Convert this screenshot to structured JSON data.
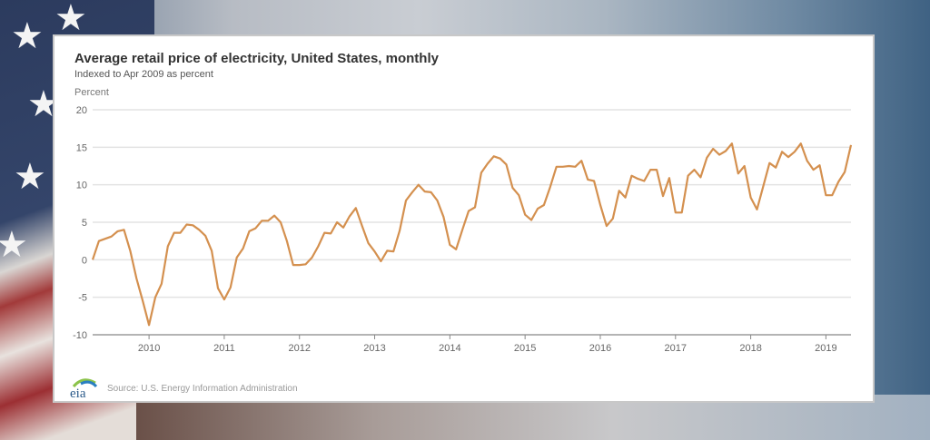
{
  "chart_data": {
    "type": "line",
    "title": "Average retail price of electricity, United States, monthly",
    "subtitle": "Indexed to Apr 2009 as percent",
    "ylabel": "Percent",
    "xlabel": "",
    "ylim": [
      -10,
      20
    ],
    "yticks": [
      -10,
      -5,
      0,
      5,
      10,
      15,
      20
    ],
    "xticks": [
      "2010",
      "2011",
      "2012",
      "2013",
      "2014",
      "2015",
      "2016",
      "2017",
      "2018",
      "2019"
    ],
    "grid": true,
    "legend": "none",
    "line_color": "#d4904f",
    "x": [
      "2009-04",
      "2009-05",
      "2009-06",
      "2009-07",
      "2009-08",
      "2009-09",
      "2009-10",
      "2009-11",
      "2009-12",
      "2010-01",
      "2010-02",
      "2010-03",
      "2010-04",
      "2010-05",
      "2010-06",
      "2010-07",
      "2010-08",
      "2010-09",
      "2010-10",
      "2010-11",
      "2010-12",
      "2011-01",
      "2011-02",
      "2011-03",
      "2011-04",
      "2011-05",
      "2011-06",
      "2011-07",
      "2011-08",
      "2011-09",
      "2011-10",
      "2011-11",
      "2011-12",
      "2012-01",
      "2012-02",
      "2012-03",
      "2012-04",
      "2012-05",
      "2012-06",
      "2012-07",
      "2012-08",
      "2012-09",
      "2012-10",
      "2012-11",
      "2012-12",
      "2013-01",
      "2013-02",
      "2013-03",
      "2013-04",
      "2013-05",
      "2013-06",
      "2013-07",
      "2013-08",
      "2013-09",
      "2013-10",
      "2013-11",
      "2013-12",
      "2014-01",
      "2014-02",
      "2014-03",
      "2014-04",
      "2014-05",
      "2014-06",
      "2014-07",
      "2014-08",
      "2014-09",
      "2014-10",
      "2014-11",
      "2014-12",
      "2015-01",
      "2015-02",
      "2015-03",
      "2015-04",
      "2015-05",
      "2015-06",
      "2015-07",
      "2015-08",
      "2015-09",
      "2015-10",
      "2015-11",
      "2015-12",
      "2016-01",
      "2016-02",
      "2016-03",
      "2016-04",
      "2016-05",
      "2016-06",
      "2016-07",
      "2016-08",
      "2016-09",
      "2016-10",
      "2016-11",
      "2016-12",
      "2017-01",
      "2017-02",
      "2017-03",
      "2017-04",
      "2017-05",
      "2017-06",
      "2017-07",
      "2017-08",
      "2017-09",
      "2017-10",
      "2017-11",
      "2017-12",
      "2018-01",
      "2018-02",
      "2018-03",
      "2018-04",
      "2018-05",
      "2018-06",
      "2018-07",
      "2018-08",
      "2018-09",
      "2018-10",
      "2018-11",
      "2018-12",
      "2019-01",
      "2019-02",
      "2019-03",
      "2019-04",
      "2019-05"
    ],
    "values": [
      0,
      2.5,
      2.8,
      3.1,
      3.8,
      4.0,
      1.2,
      -2.5,
      -5.5,
      -8.7,
      -5.0,
      -3.2,
      1.8,
      3.6,
      3.6,
      4.7,
      4.6,
      4.0,
      3.2,
      1.2,
      -3.8,
      -5.3,
      -3.7,
      0.3,
      1.5,
      3.8,
      4.2,
      5.2,
      5.2,
      5.9,
      5.0,
      2.5,
      -0.7,
      -0.7,
      -0.6,
      0.3,
      1.8,
      3.6,
      3.5,
      5.0,
      4.3,
      5.8,
      6.9,
      4.5,
      2.2,
      1.1,
      -0.2,
      1.2,
      1.1,
      3.9,
      7.9,
      9.0,
      10.0,
      9.1,
      9.0,
      7.9,
      5.7,
      2.0,
      1.4,
      4.0,
      6.5,
      7.0,
      11.6,
      12.8,
      13.8,
      13.5,
      12.7,
      9.6,
      8.6,
      6.0,
      5.3,
      6.8,
      7.3,
      9.7,
      12.4,
      12.4,
      12.5,
      12.4,
      13.2,
      10.7,
      10.5,
      7.3,
      4.5,
      5.5,
      9.2,
      8.3,
      11.2,
      10.8,
      10.5,
      12.0,
      12.0,
      8.5,
      10.9,
      6.3,
      6.3,
      11.2,
      12.0,
      11.0,
      13.6,
      14.8,
      14.0,
      14.5,
      15.5,
      11.5,
      12.5,
      8.3,
      6.7,
      9.8,
      12.9,
      12.3,
      14.4,
      13.7,
      14.4,
      15.5,
      13.2,
      12.0,
      12.6,
      8.6,
      8.6,
      10.4,
      11.7,
      15.3
    ]
  },
  "footer": {
    "source": "Source: U.S. Energy Information Administration",
    "logo_text": "eia"
  }
}
